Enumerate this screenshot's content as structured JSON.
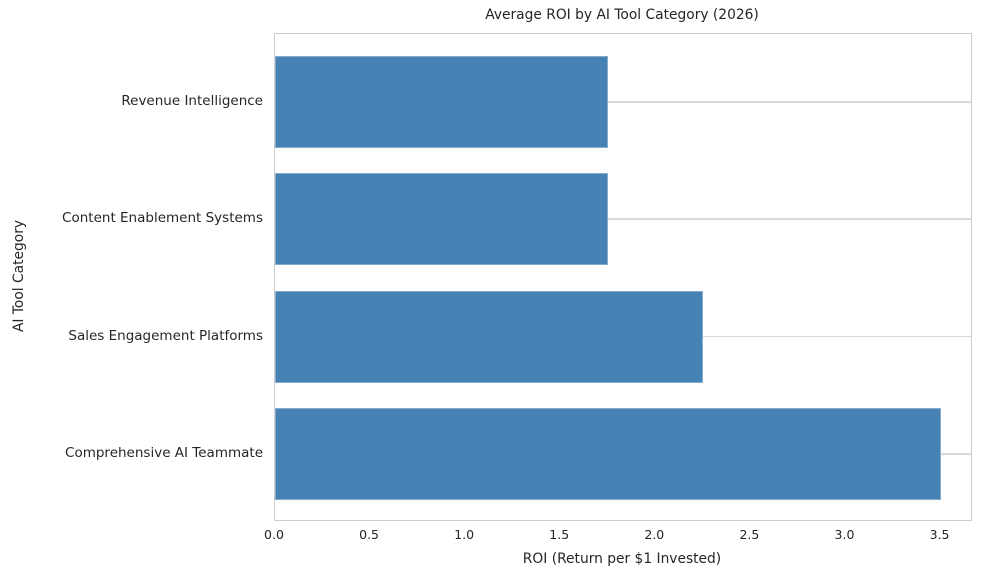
{
  "chart_data": {
    "type": "bar",
    "orientation": "horizontal",
    "title": "Average ROI by AI Tool Category (2026)",
    "xlabel": "ROI (Return per $1 Invested)",
    "ylabel": "AI Tool Category",
    "categories": [
      "Revenue Intelligence",
      "Content Enablement Systems",
      "Sales Engagement Platforms",
      "Comprehensive AI Teammate"
    ],
    "values": [
      1.75,
      1.75,
      2.25,
      3.5
    ],
    "xlim": [
      0,
      3.66
    ],
    "xticks": [
      0.0,
      0.5,
      1.0,
      1.5,
      2.0,
      2.5,
      3.0,
      3.5
    ],
    "xtick_labels": [
      "0.0",
      "0.5",
      "1.0",
      "1.5",
      "2.0",
      "2.5",
      "3.0",
      "3.5"
    ],
    "grid": "horizontal-only",
    "legend": "none",
    "colors": {
      "bar": "#4682b4",
      "grid": "#d6d6d6",
      "spine": "#cccccc",
      "text": "#262626",
      "background": "#ffffff"
    }
  }
}
